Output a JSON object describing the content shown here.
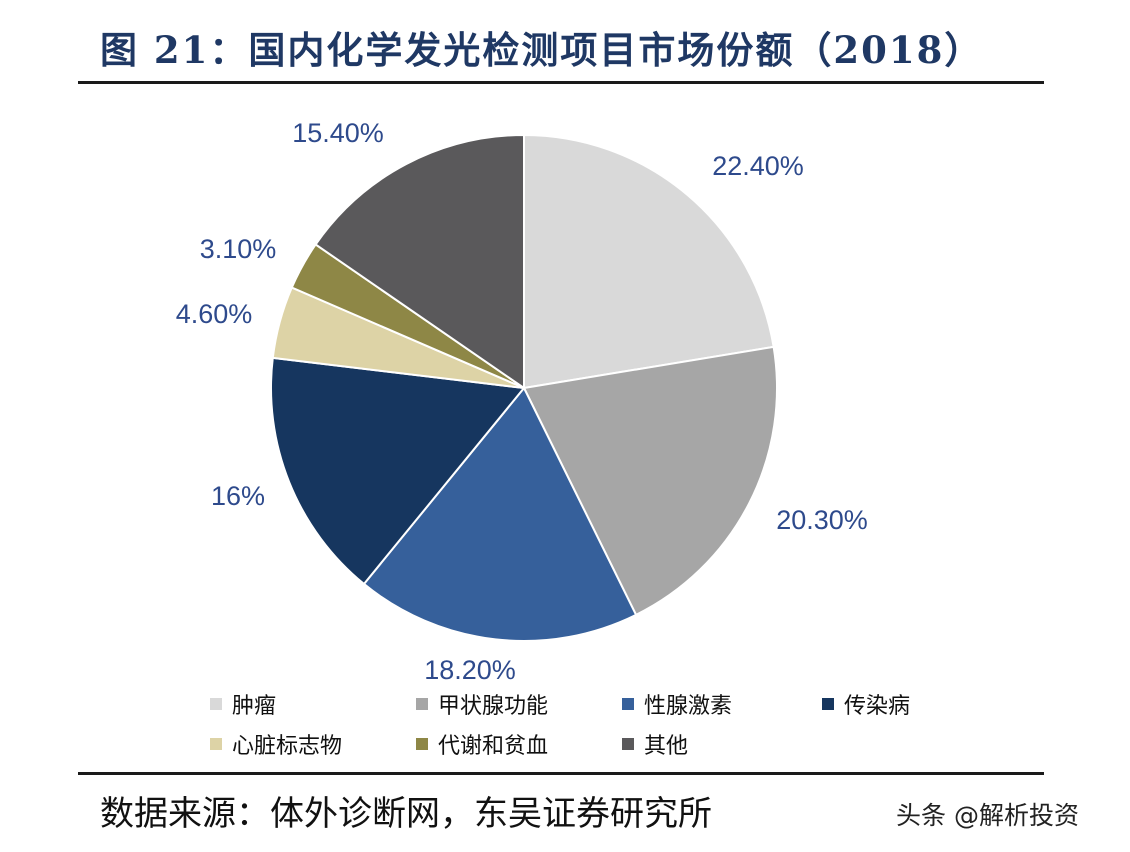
{
  "header": {
    "title": "图 21：国内化学发光检测项目市场份额（2018）"
  },
  "footer": {
    "source": "数据来源：体外诊断网，东吴证券研究所",
    "watermark": "头条 @解析投资"
  },
  "chart_data": {
    "type": "pie",
    "title": "图 21：国内化学发光检测项目市场份额（2018）",
    "legend_position": "bottom",
    "start_angle_deg": 0,
    "direction": "clockwise",
    "slices": [
      {
        "name": "肿瘤",
        "value": 22.4,
        "label": "22.40%",
        "color": "#d9d9d9"
      },
      {
        "name": "甲状腺功能",
        "value": 20.3,
        "label": "20.30%",
        "color": "#a6a6a6"
      },
      {
        "name": "性腺激素",
        "value": 18.2,
        "label": "18.20%",
        "color": "#36609b"
      },
      {
        "name": "传染病",
        "value": 16.0,
        "label": "16%",
        "color": "#16365f"
      },
      {
        "name": "心脏标志物",
        "value": 4.6,
        "label": "4.60%",
        "color": "#ddd3a6"
      },
      {
        "name": "代谢和贫血",
        "value": 3.1,
        "label": "3.10%",
        "color": "#8e8746"
      },
      {
        "name": "其他",
        "value": 15.4,
        "label": "15.40%",
        "color": "#5a595b"
      }
    ]
  }
}
